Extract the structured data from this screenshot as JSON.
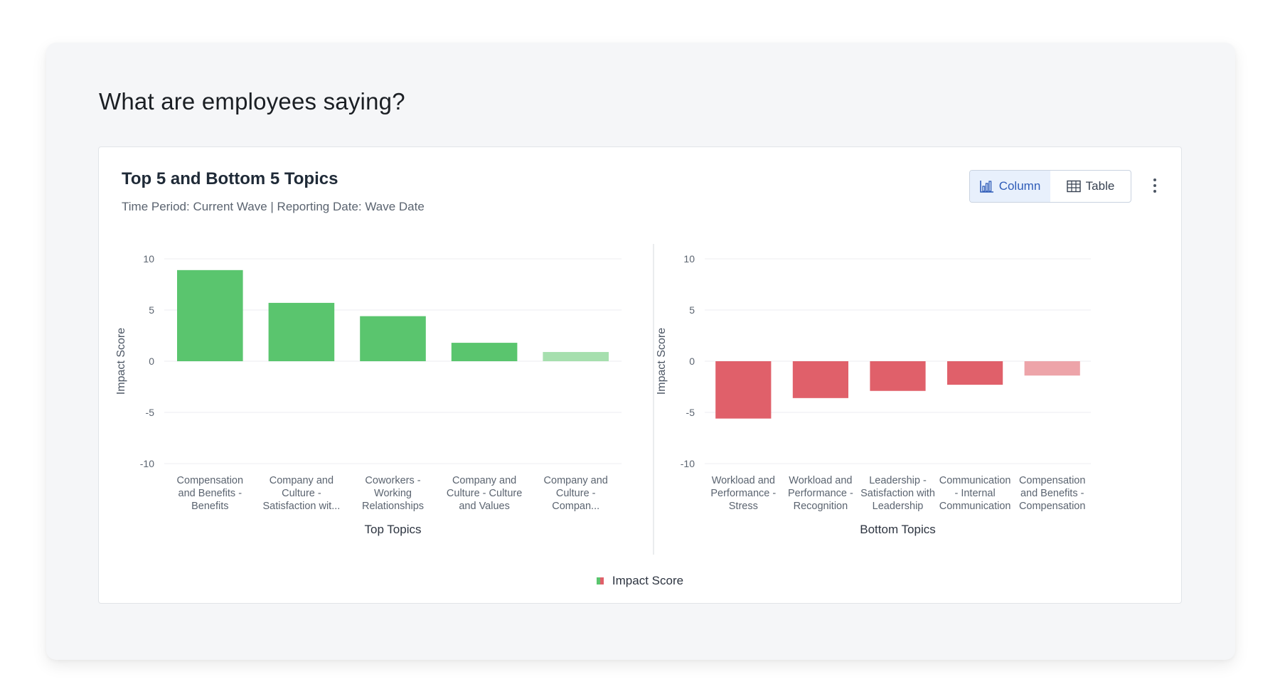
{
  "page": {
    "title": "What are employees saying?"
  },
  "card": {
    "title": "Top 5 and Bottom 5 Topics",
    "subtitle": "Time Period: Current Wave | Reporting Date: Wave Date"
  },
  "toggle": {
    "column_label": "Column",
    "table_label": "Table",
    "selected": "Column"
  },
  "colors": {
    "positive": "#5ac56e",
    "positive_light": "#a6dfae",
    "negative": "#e0606a",
    "negative_light": "#eda4a9",
    "grid": "#eceef1",
    "divider": "#d6d9de"
  },
  "legend": {
    "label": "Impact Score"
  },
  "chart_data": [
    {
      "type": "bar",
      "categories": [
        [
          "Compensation",
          "and Benefits -",
          "Benefits"
        ],
        [
          "Company and",
          "Culture -",
          "Satisfaction wit..."
        ],
        [
          "Coworkers -",
          "Working",
          "Relationships"
        ],
        [
          "Company and",
          "Culture - Culture",
          "and Values"
        ],
        [
          "Company and",
          "Culture -",
          "Compan..."
        ]
      ],
      "values": [
        8.9,
        5.7,
        4.4,
        1.8,
        0.9
      ],
      "xlabel": "Top Topics",
      "ylabel": "Impact Score",
      "ylim": [
        -10,
        10
      ],
      "yticks": [
        10,
        5,
        0,
        -5,
        -10
      ],
      "grid": true
    },
    {
      "type": "bar",
      "categories": [
        [
          "Workload and",
          "Performance -",
          "Stress"
        ],
        [
          "Workload and",
          "Performance -",
          "Recognition"
        ],
        [
          "Leadership -",
          "Satisfaction with",
          "Leadership"
        ],
        [
          "Communication",
          "- Internal",
          "Communication"
        ],
        [
          "Compensation",
          "and Benefits -",
          "Compensation"
        ]
      ],
      "values": [
        -5.6,
        -3.6,
        -2.9,
        -2.3,
        -1.4
      ],
      "xlabel": "Bottom Topics",
      "ylabel": "Impact Score",
      "ylim": [
        -10,
        10
      ],
      "yticks": [
        10,
        5,
        0,
        -5,
        -10
      ],
      "grid": true
    }
  ]
}
